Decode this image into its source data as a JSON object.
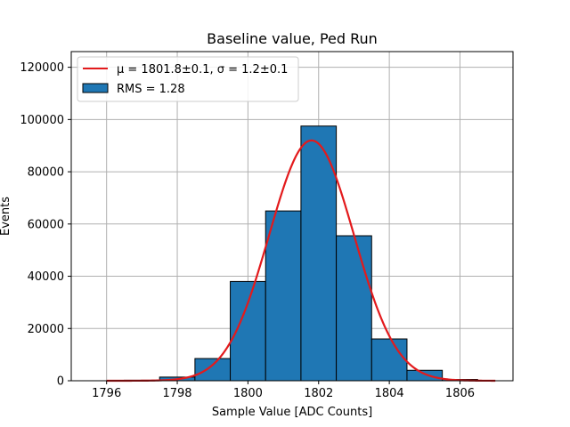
{
  "chart_data": {
    "type": "bar",
    "title": "Baseline value, Ped Run",
    "xlabel": "Sample Value [ADC Counts]",
    "ylabel": "Events",
    "xlim": [
      1795,
      1807.5
    ],
    "ylim": [
      0,
      126000
    ],
    "xticks": [
      1796,
      1798,
      1800,
      1802,
      1804,
      1806
    ],
    "yticks": [
      0,
      20000,
      40000,
      60000,
      80000,
      100000,
      120000
    ],
    "grid": true,
    "legend_position": "top-left",
    "bar_color": "#1f77b4",
    "fit_color": "#e31a1c",
    "bins": [
      {
        "lo": 1795.5,
        "hi": 1796.5,
        "value": 0
      },
      {
        "lo": 1796.5,
        "hi": 1797.5,
        "value": 200
      },
      {
        "lo": 1797.5,
        "hi": 1798.5,
        "value": 1400
      },
      {
        "lo": 1798.5,
        "hi": 1799.5,
        "value": 8500
      },
      {
        "lo": 1799.5,
        "hi": 1800.5,
        "value": 38000
      },
      {
        "lo": 1800.5,
        "hi": 1801.5,
        "value": 65000
      },
      {
        "lo": 1801.5,
        "hi": 1802.5,
        "value": 97500
      },
      {
        "lo": 1802.5,
        "hi": 1803.5,
        "value": 55500
      },
      {
        "lo": 1803.5,
        "hi": 1804.5,
        "value": 16000
      },
      {
        "lo": 1804.5,
        "hi": 1805.5,
        "value": 4000
      },
      {
        "lo": 1805.5,
        "hi": 1806.5,
        "value": 500
      }
    ],
    "fit": {
      "mu": 1801.8,
      "sigma": 1.2,
      "amplitude": 92000,
      "x_range": [
        1796,
        1807
      ]
    },
    "legend": [
      {
        "kind": "line",
        "label": "μ = 1801.8±0.1, σ = 1.2±0.1"
      },
      {
        "kind": "patch",
        "label": "RMS = 1.28"
      }
    ]
  }
}
